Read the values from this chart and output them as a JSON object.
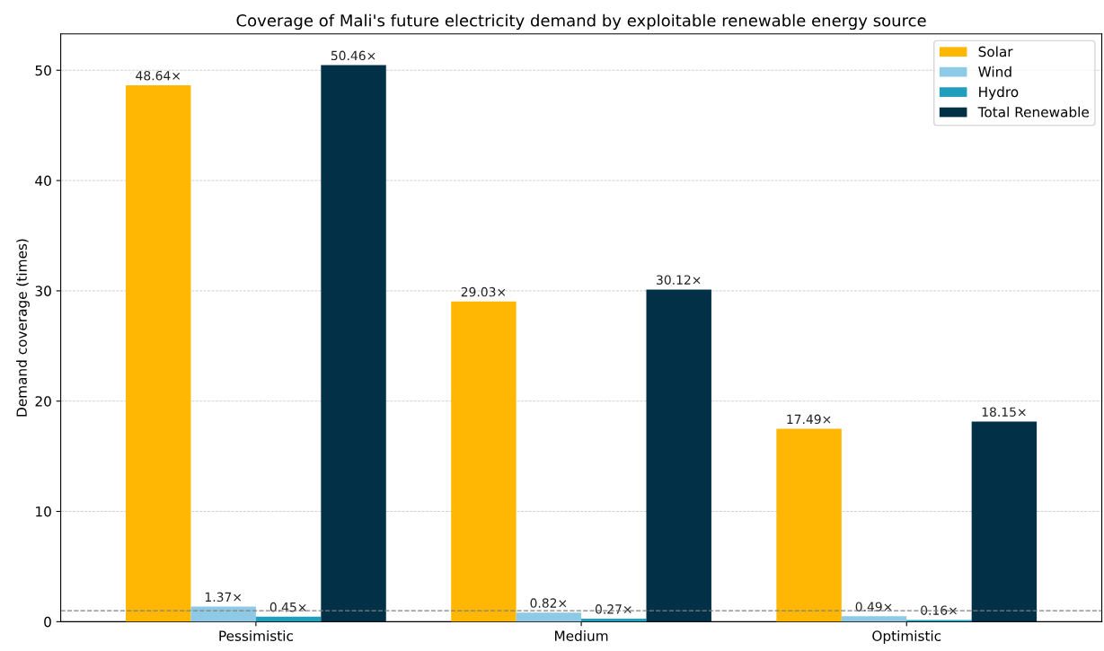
{
  "chart_data": {
    "type": "bar",
    "title": "Coverage of Mali's future electricity demand by exploitable renewable energy source",
    "ylabel": "Demand coverage (times)",
    "categories": [
      "Pessimistic",
      "Medium",
      "Optimistic"
    ],
    "series": [
      {
        "name": "Solar",
        "color": "#ffb703",
        "values": [
          48.64,
          29.03,
          17.49
        ],
        "value_labels": [
          "48.64×",
          "29.03×",
          "17.49×"
        ]
      },
      {
        "name": "Wind",
        "color": "#8ecae6",
        "values": [
          1.37,
          0.82,
          0.49
        ],
        "value_labels": [
          "1.37×",
          "0.82×",
          "0.49×"
        ]
      },
      {
        "name": "Hydro",
        "color": "#219ebc",
        "values": [
          0.45,
          0.27,
          0.16
        ],
        "value_labels": [
          "0.45×",
          "0.27×",
          "0.16×"
        ]
      },
      {
        "name": "Total Renewable",
        "color": "#023047",
        "values": [
          50.46,
          30.12,
          18.15
        ],
        "value_labels": [
          "50.46×",
          "30.12×",
          "18.15×"
        ]
      }
    ],
    "ylim": [
      0,
      53.3
    ],
    "yticks": [
      0,
      10,
      20,
      30,
      40,
      50
    ],
    "grid": "y",
    "legend": "top right",
    "ref_lines": [
      {
        "axis": "y",
        "value": 1,
        "color": "#808080",
        "line_style": "dashed"
      }
    ]
  }
}
